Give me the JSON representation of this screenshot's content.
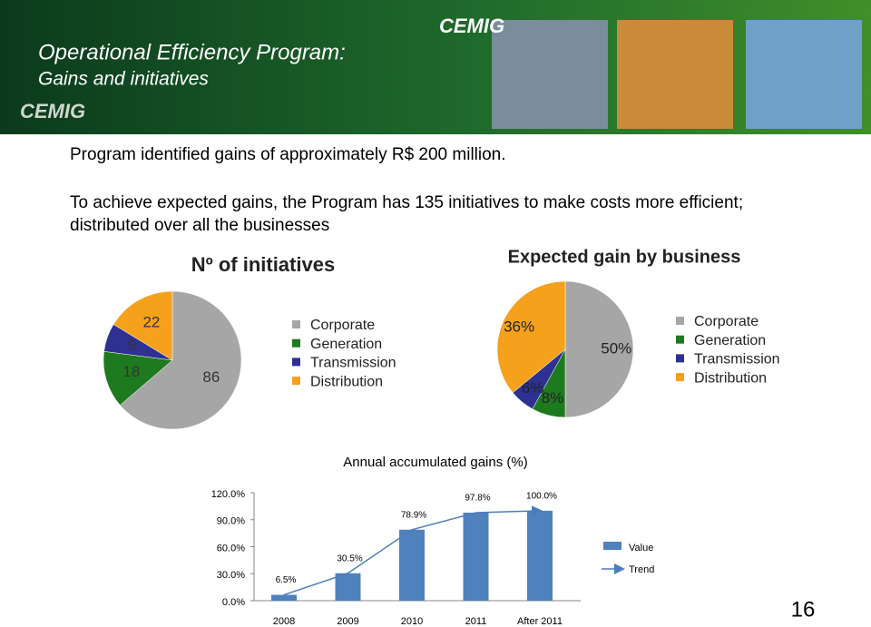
{
  "header": {
    "title": "Operational Efficiency Program:",
    "subtitle": "Gains and initiatives",
    "logo": "CEMIG",
    "brand": "CEMIG"
  },
  "text": [
    "Program identified gains of approximately R$ 200 million.",
    "To achieve expected gains, the Program has 135 initiatives to make costs more efficient; distributed over all the businesses"
  ],
  "page_number": "16",
  "chart_data": [
    {
      "type": "pie",
      "title": "Nº of initiatives",
      "categories": [
        "Corporate",
        "Generation",
        "Transmission",
        "Distribution"
      ],
      "values": [
        86,
        18,
        9,
        22
      ],
      "colors": [
        "#a6a6a6",
        "#1e7a1e",
        "#2e3192",
        "#f5a11c"
      ]
    },
    {
      "type": "pie",
      "title": "Expected gain by business",
      "categories": [
        "Corporate",
        "Generation",
        "Transmission",
        "Distribution"
      ],
      "values": [
        50,
        8,
        6,
        36
      ],
      "value_labels": [
        "50%",
        "8%",
        "6%",
        "36%"
      ],
      "colors": [
        "#a6a6a6",
        "#1e7a1e",
        "#2e3192",
        "#f5a11c"
      ]
    },
    {
      "type": "bar",
      "title": "Annual accumulated gains (%)",
      "categories": [
        "2008",
        "2009",
        "2010",
        "2011",
        "After 2011"
      ],
      "series": [
        {
          "name": "Value",
          "color": "#4f81bd",
          "values": [
            6.5,
            30.5,
            78.9,
            97.8,
            100.0
          ],
          "value_labels": [
            "6.5%",
            "30.5%",
            "78.9%",
            "97.8%",
            "100.0%"
          ]
        },
        {
          "name": "Trend",
          "type": "line",
          "color": "#4a7ebb",
          "values": [
            6.5,
            30.5,
            78.9,
            97.8,
            100.0
          ]
        }
      ],
      "ylim": [
        0,
        120
      ],
      "yticks": [
        {
          "value": 0,
          "label": "0.0%"
        },
        {
          "value": 30,
          "label": "30.0%"
        },
        {
          "value": 60,
          "label": "60.0%"
        },
        {
          "value": 90,
          "label": "90.0%"
        },
        {
          "value": 120,
          "label": "120.0%"
        }
      ]
    }
  ]
}
